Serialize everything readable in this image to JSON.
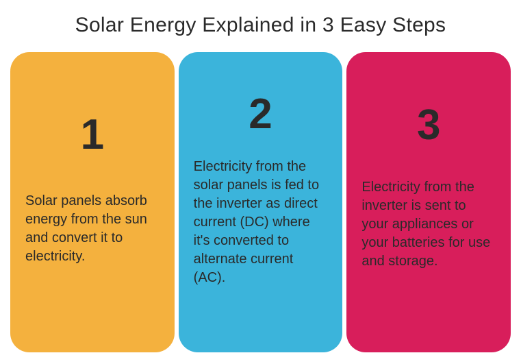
{
  "title": "Solar Energy Explained in 3 Easy Steps",
  "type": "infographic",
  "background_color": "#ffffff",
  "title_fontsize": 30,
  "title_color": "#2a2a2a",
  "card_border_radius": 28,
  "number_fontsize": 62,
  "number_color": "#2a2a2a",
  "text_fontsize": 20,
  "text_color": "#2a2a2a",
  "steps": [
    {
      "number": "1",
      "text": "Solar panels absorb energy from the sun and convert it to electricity.",
      "bg_color": "#f4b13e"
    },
    {
      "number": "2",
      "text": "Electricity from the solar panels is fed to the inverter as direct current (DC) where it's converted to alternate current (AC).",
      "bg_color": "#3bb4db"
    },
    {
      "number": "3",
      "text": "Electricity from the inverter is sent to your appliances or your batteries for use and storage.",
      "bg_color": "#d81e5b"
    }
  ]
}
